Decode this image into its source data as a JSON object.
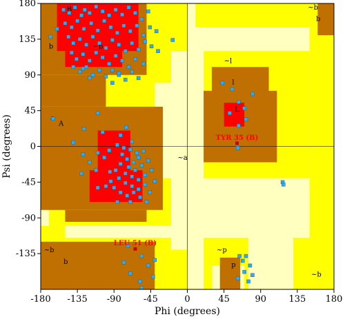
{
  "chart_data": {
    "type": "scatter",
    "title": "",
    "xlabel": "Phi (degrees)",
    "ylabel": "Psi (degrees)",
    "xlim": [
      -180,
      180
    ],
    "ylim": [
      -180,
      180
    ],
    "xticks": [
      -180,
      -135,
      -90,
      -45,
      0,
      45,
      90,
      135,
      180
    ],
    "yticks": [
      180,
      135,
      90,
      45,
      0,
      -45,
      -90,
      -135
    ],
    "colors": {
      "generous": "#ffffc0",
      "allowed": "#ffff00",
      "additional": "#c07000",
      "core": "#ff0000",
      "points": "#33aaee",
      "outliers": "#cc0000"
    },
    "region_labels": [
      {
        "text": "B",
        "x": -148,
        "y": 170
      },
      {
        "text": "b",
        "x": -170,
        "y": 123
      },
      {
        "text": "A",
        "x": -158,
        "y": 26
      },
      {
        "text": "a",
        "x": -168,
        "y": 33
      },
      {
        "text": "~a",
        "x": -12,
        "y": -17
      },
      {
        "text": "~b",
        "x": -116,
        "y": 123
      },
      {
        "text": "~b",
        "x": -176,
        "y": -133
      },
      {
        "text": "b",
        "x": -152,
        "y": -148
      },
      {
        "text": "~l",
        "x": 45,
        "y": 105
      },
      {
        "text": "l",
        "x": 55,
        "y": 78
      },
      {
        "text": "L",
        "x": 58,
        "y": 44
      },
      {
        "text": "~b",
        "x": 148,
        "y": 172
      },
      {
        "text": "b",
        "x": 158,
        "y": 158
      },
      {
        "text": "~p",
        "x": 36,
        "y": -133
      },
      {
        "text": "p",
        "x": 54,
        "y": -152
      },
      {
        "text": "~b",
        "x": 152,
        "y": -164
      }
    ],
    "outliers": [
      {
        "label": "TYR 35 (B)",
        "x": 61,
        "y": 4
      },
      {
        "label": "LEU 51 (B)",
        "x": -64,
        "y": -129
      }
    ],
    "points": [
      [
        -152,
        172
      ],
      [
        -145,
        168
      ],
      [
        -138,
        175
      ],
      [
        -130,
        165
      ],
      [
        -126,
        172
      ],
      [
        -120,
        168
      ],
      [
        -112,
        176
      ],
      [
        -104,
        170
      ],
      [
        -96,
        165
      ],
      [
        -88,
        172
      ],
      [
        -80,
        166
      ],
      [
        -72,
        175
      ],
      [
        -64,
        168
      ],
      [
        -56,
        160
      ],
      [
        -48,
        170
      ],
      [
        -150,
        155
      ],
      [
        -142,
        150
      ],
      [
        -135,
        158
      ],
      [
        -127,
        148
      ],
      [
        -118,
        155
      ],
      [
        -110,
        146
      ],
      [
        -102,
        158
      ],
      [
        -94,
        150
      ],
      [
        -86,
        143
      ],
      [
        -78,
        152
      ],
      [
        -70,
        145
      ],
      [
        -62,
        152
      ],
      [
        -54,
        140
      ],
      [
        -46,
        150
      ],
      [
        -38,
        145
      ],
      [
        -146,
        138
      ],
      [
        -140,
        130
      ],
      [
        -132,
        135
      ],
      [
        -124,
        128
      ],
      [
        -116,
        138
      ],
      [
        -108,
        130
      ],
      [
        -100,
        124
      ],
      [
        -92,
        134
      ],
      [
        -84,
        128
      ],
      [
        -76,
        120
      ],
      [
        -68,
        130
      ],
      [
        -60,
        122
      ],
      [
        -52,
        132
      ],
      [
        -44,
        126
      ],
      [
        -142,
        118
      ],
      [
        -136,
        110
      ],
      [
        -128,
        116
      ],
      [
        -120,
        108
      ],
      [
        -112,
        118
      ],
      [
        -104,
        112
      ],
      [
        -96,
        104
      ],
      [
        -88,
        114
      ],
      [
        -80,
        108
      ],
      [
        -72,
        100
      ],
      [
        -64,
        110
      ],
      [
        -54,
        104
      ],
      [
        -140,
        100
      ],
      [
        -132,
        94
      ],
      [
        -124,
        100
      ],
      [
        -116,
        90
      ],
      [
        -108,
        96
      ],
      [
        -100,
        88
      ],
      [
        -92,
        96
      ],
      [
        -84,
        90
      ],
      [
        -76,
        84
      ],
      [
        -68,
        94
      ],
      [
        -60,
        86
      ],
      [
        -18,
        134
      ],
      [
        -36,
        120
      ],
      [
        -160,
        148
      ],
      [
        -168,
        138
      ],
      [
        -128,
        98
      ],
      [
        -120,
        86
      ],
      [
        -84,
        92
      ],
      [
        -92,
        80
      ],
      [
        -110,
        42
      ],
      [
        -165,
        35
      ],
      [
        -140,
        5
      ],
      [
        -127,
        22
      ],
      [
        -104,
        18
      ],
      [
        -82,
        14
      ],
      [
        -75,
        24
      ],
      [
        -68,
        6
      ],
      [
        -86,
        2
      ],
      [
        -96,
        -5
      ],
      [
        -110,
        -8
      ],
      [
        -102,
        -14
      ],
      [
        -120,
        -20
      ],
      [
        -128,
        -10
      ],
      [
        -112,
        -30
      ],
      [
        -80,
        -10
      ],
      [
        -74,
        -16
      ],
      [
        -66,
        -20
      ],
      [
        -60,
        -14
      ],
      [
        -82,
        -22
      ],
      [
        -72,
        -26
      ],
      [
        -64,
        -30
      ],
      [
        -56,
        -24
      ],
      [
        -76,
        -34
      ],
      [
        -68,
        -38
      ],
      [
        -60,
        -42
      ],
      [
        -52,
        -36
      ],
      [
        -84,
        -40
      ],
      [
        -76,
        -46
      ],
      [
        -68,
        -50
      ],
      [
        -60,
        -54
      ],
      [
        -52,
        -48
      ],
      [
        -88,
        -30
      ],
      [
        -90,
        -52
      ],
      [
        -82,
        -58
      ],
      [
        -74,
        -62
      ],
      [
        -66,
        -58
      ],
      [
        -58,
        -64
      ],
      [
        -46,
        -58
      ],
      [
        -94,
        -44
      ],
      [
        -62,
        -8
      ],
      [
        -70,
        -4
      ],
      [
        -78,
        -2
      ],
      [
        -54,
        -6
      ],
      [
        -48,
        -18
      ],
      [
        -44,
        -30
      ],
      [
        -50,
        -70
      ],
      [
        -130,
        -34
      ],
      [
        -95,
        -32
      ],
      [
        -100,
        -50
      ],
      [
        -110,
        -52
      ],
      [
        -86,
        -70
      ],
      [
        -70,
        -70
      ],
      [
        -40,
        -44
      ],
      [
        -73,
        -125
      ],
      [
        -56,
        -138
      ],
      [
        -48,
        -150
      ],
      [
        -40,
        -143
      ],
      [
        -42,
        -164
      ],
      [
        -58,
        -170
      ],
      [
        -70,
        -160
      ],
      [
        -78,
        -146
      ],
      [
        -56,
        -178
      ],
      [
        43,
        80
      ],
      [
        55,
        72
      ],
      [
        63,
        56
      ],
      [
        70,
        48
      ],
      [
        80,
        66
      ],
      [
        72,
        34
      ],
      [
        52,
        42
      ],
      [
        63,
        26
      ],
      [
        62,
        -2
      ],
      [
        117,
        -45
      ],
      [
        118,
        -48
      ],
      [
        64,
        -138
      ],
      [
        72,
        -138
      ],
      [
        68,
        -144
      ],
      [
        77,
        -150
      ],
      [
        80,
        -162
      ],
      [
        70,
        -158
      ],
      [
        62,
        -166
      ],
      [
        75,
        -170
      ]
    ]
  }
}
